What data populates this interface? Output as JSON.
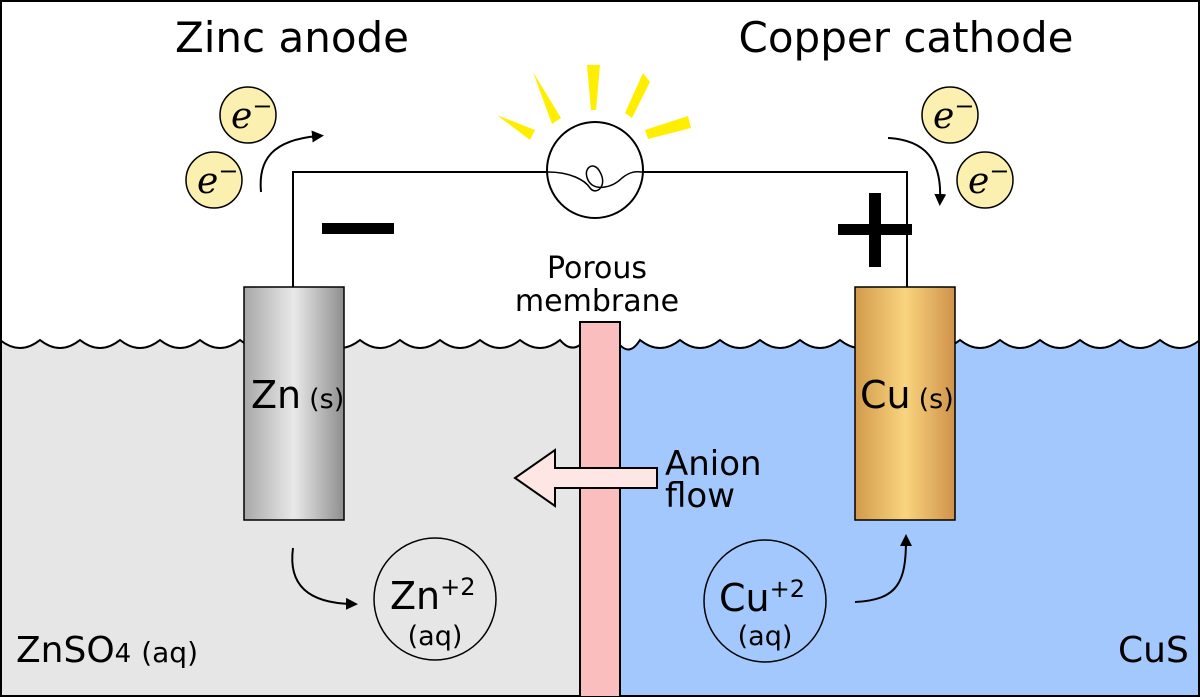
{
  "labels": {
    "anode_title": "Zinc anode",
    "cathode_title": "Copper cathode",
    "minus_sign": "−",
    "plus_sign": "+",
    "membrane_line1": "Porous",
    "membrane_line2": "membrane",
    "anion_line1": "Anion",
    "anion_line2": "flow",
    "zn_electrode_symbol": "Zn",
    "zn_electrode_state": "(s)",
    "cu_electrode_symbol": "Cu",
    "cu_electrode_state": "(s)",
    "zn_ion_symbol": "Zn",
    "zn_ion_charge": "+2",
    "zn_ion_state": "(aq)",
    "cu_ion_symbol": "Cu",
    "cu_ion_charge": "+2",
    "cu_ion_state": "(aq)",
    "left_solution_formula": "ZnSO",
    "left_solution_subscript": "4",
    "left_solution_state": "(aq)",
    "right_solution_formula": "CuS",
    "electron_base": "e",
    "electron_charge": "−"
  },
  "colors": {
    "left_solution": "#e6e6e6",
    "right_solution": "#a2c8fd",
    "membrane": "#fbbebe",
    "electron_fill": "#fbf0b0",
    "zinc_light": "#e8e8e8",
    "zinc_dark": "#9a9a9a",
    "copper_light": "#f9d47e",
    "copper_dark": "#d09040",
    "light_rays": "#ffee00",
    "arrow_fill": "#fde6e3"
  },
  "icons": {
    "bulb": "light-bulb-icon",
    "electron": "electron-badge",
    "arrow": "curved-arrow-icon"
  }
}
